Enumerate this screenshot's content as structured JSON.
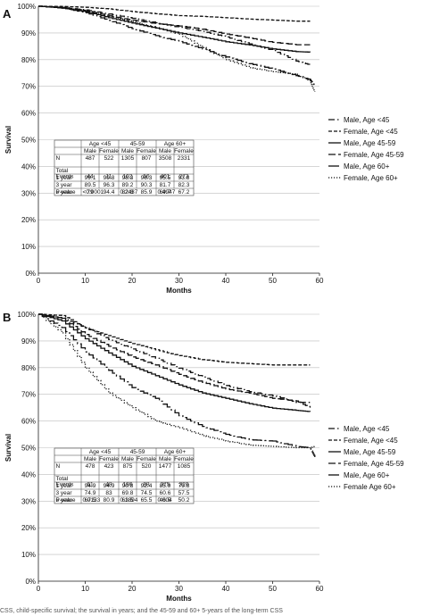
{
  "chart_data": [
    {
      "panel": "A",
      "type": "line",
      "xlabel": "Months",
      "ylabel": "Survival",
      "xlim": [
        0,
        60
      ],
      "ylim": [
        0,
        100
      ],
      "xticks": [
        "0",
        "10",
        "20",
        "30",
        "40",
        "50",
        "60"
      ],
      "yticks": [
        "0%",
        "10%",
        "20%",
        "30%",
        "40%",
        "50%",
        "60%",
        "70%",
        "80%",
        "90%",
        "100%"
      ],
      "grid": true,
      "legend_position": "right",
      "series": [
        {
          "name": "Male, Age <45",
          "dash": "7,3,1.5,3",
          "x": [
            0,
            5,
            10,
            15,
            20,
            25,
            30,
            35,
            40,
            45,
            50,
            55,
            58
          ],
          "y": [
            100,
            99.5,
            98.6,
            97.1,
            95.5,
            93.8,
            92.1,
            90.6,
            88.5,
            85.9,
            83.4,
            79.5,
            78
          ]
        },
        {
          "name": "Female, Age <45",
          "dash": "4,2",
          "x": [
            0,
            5,
            10,
            15,
            20,
            25,
            30,
            35,
            40,
            45,
            50,
            55,
            58
          ],
          "y": [
            100,
            99.9,
            99.6,
            99.0,
            98.0,
            97.2,
            96.5,
            96.2,
            95.7,
            95.2,
            94.8,
            94.4,
            94.4
          ]
        },
        {
          "name": "Male, Age 45-59",
          "dash": "",
          "x": [
            0,
            5,
            10,
            15,
            20,
            25,
            30,
            35,
            40,
            45,
            50,
            55,
            58
          ],
          "y": [
            100,
            99.3,
            98.0,
            95.7,
            93.7,
            91.8,
            90.0,
            88.4,
            86.7,
            85.5,
            84.0,
            83.0,
            82.8
          ]
        },
        {
          "name": "Female, Age 45-59",
          "dash": "8,3",
          "x": [
            0,
            5,
            10,
            15,
            20,
            25,
            30,
            35,
            40,
            45,
            50,
            55,
            58
          ],
          "y": [
            100,
            99.5,
            98.3,
            96.4,
            94.8,
            93.5,
            92.6,
            91.4,
            89.6,
            88.1,
            86.5,
            85.6,
            85.6
          ]
        },
        {
          "name": "Male, Age 60+",
          "dash": "12,3,2,3",
          "x": [
            0,
            5,
            10,
            15,
            20,
            25,
            30,
            35,
            40,
            45,
            50,
            55,
            58,
            59
          ],
          "y": [
            100,
            99.3,
            97.6,
            94.7,
            91.6,
            89.0,
            86.8,
            84.0,
            81.0,
            78.5,
            76.5,
            74.0,
            72.5,
            70
          ]
        },
        {
          "name": "Female, Age 60+",
          "dash": "1.2,1.8",
          "x": [
            0,
            5,
            10,
            15,
            20,
            25,
            30,
            35,
            40,
            45,
            50,
            55,
            58,
            59
          ],
          "y": [
            100,
            99.6,
            98.3,
            96.3,
            94.2,
            92.0,
            89.5,
            84.5,
            80.0,
            77.0,
            75.5,
            74.5,
            72.0,
            68
          ]
        }
      ],
      "table": {
        "groups": [
          "Age <45",
          "45-59",
          "Age 60+"
        ],
        "header": [
          "",
          "Male",
          "Female",
          "Male",
          "Female",
          "Male",
          "Female"
        ],
        "rows": [
          [
            "N",
            "487",
            "522",
            "1305",
            "807",
            "3508",
            "2331"
          ],
          [
            "Total Events",
            "44",
            "11",
            "102",
            "56",
            "401",
            "273"
          ],
          [
            "1 year",
            "99.1",
            "99.8",
            "98.3",
            "96.3",
            "95.5",
            "93.8"
          ],
          [
            "3 year",
            "89.5",
            "96.3",
            "89.2",
            "90.3",
            "81.7",
            "82.3"
          ],
          [
            "5 year",
            "79",
            "94.4",
            "82.8",
            "85.9",
            "69.7",
            "67.2"
          ]
        ],
        "pvalues": [
          "<0.0001",
          "0.2437",
          "0.4947"
        ],
        "pvalue_label": "P-value"
      }
    },
    {
      "panel": "B",
      "type": "line",
      "xlabel": "Months",
      "ylabel": "Survival",
      "xlim": [
        0,
        60
      ],
      "ylim": [
        0,
        100
      ],
      "xticks": [
        "0",
        "10",
        "20",
        "30",
        "40",
        "50",
        "60"
      ],
      "yticks": [
        "0%",
        "10%",
        "20%",
        "30%",
        "40%",
        "50%",
        "60%",
        "70%",
        "80%",
        "90%",
        "100%"
      ],
      "grid": true,
      "legend_position": "right",
      "series": [
        {
          "name": "Male, Age <45",
          "dash": "7,3,1.5,3",
          "x": [
            0,
            5,
            10,
            15,
            20,
            25,
            30,
            35,
            40,
            45,
            50,
            55,
            58
          ],
          "y": [
            100,
            98.5,
            94.9,
            90.5,
            87.0,
            83.5,
            79.8,
            76.5,
            73.3,
            71.0,
            69.5,
            67.0,
            67.0
          ]
        },
        {
          "name": "Female, Age <45",
          "dash": "4,2",
          "x": [
            0,
            5,
            10,
            15,
            20,
            25,
            30,
            35,
            40,
            45,
            50,
            55,
            58
          ],
          "y": [
            100,
            99.5,
            94.9,
            92.0,
            89.0,
            86.7,
            84.5,
            83.0,
            82.0,
            81.5,
            81.0,
            81.0,
            81.0
          ]
        },
        {
          "name": "Male, Age 45-59",
          "dash": "",
          "x": [
            0,
            5,
            10,
            15,
            20,
            25,
            30,
            35,
            40,
            45,
            50,
            55,
            58
          ],
          "y": [
            100,
            97.5,
            90.8,
            85.5,
            80.5,
            77.0,
            73.5,
            70.5,
            68.5,
            66.5,
            64.8,
            64.0,
            63.5
          ]
        },
        {
          "name": "Female, Age 45-59",
          "dash": "8,3",
          "x": [
            0,
            5,
            10,
            15,
            20,
            25,
            30,
            35,
            40,
            45,
            50,
            55,
            58
          ],
          "y": [
            100,
            98.5,
            92.4,
            88.0,
            84.0,
            81.0,
            77.5,
            74.5,
            72.0,
            70.5,
            68.5,
            67.5,
            65.0
          ]
        },
        {
          "name": "Male, Age 60+",
          "dash": "12,3,2,3",
          "x": [
            0,
            5,
            10,
            15,
            20,
            25,
            30,
            35,
            40,
            45,
            50,
            55,
            58,
            59
          ],
          "y": [
            100,
            95.0,
            85.9,
            79.0,
            72.5,
            68.5,
            62.0,
            58.0,
            55.0,
            53.0,
            52.5,
            50.5,
            50.0,
            46.5
          ]
        },
        {
          "name": "Female Age 60+",
          "dash": "1.2,1.8",
          "x": [
            0,
            5,
            10,
            15,
            20,
            25,
            30,
            35,
            40,
            45,
            50,
            55,
            58,
            59
          ],
          "y": [
            100,
            93.0,
            79.8,
            70.5,
            65.0,
            60.0,
            57.5,
            54.5,
            52.5,
            51.0,
            50.5,
            50.0,
            50.0,
            50.5
          ]
        }
      ],
      "table": {
        "groups": [
          "Age <45",
          "45-59",
          "Age 60+"
        ],
        "header": [
          "",
          "Male",
          "Female",
          "Male",
          "Female",
          "Male",
          "Female"
        ],
        "rows": [
          [
            "N",
            "478",
            "423",
            "875",
            "520",
            "1477",
            "1085"
          ],
          [
            "Total Events",
            "61",
            "48",
            "186",
            "88",
            "375",
            "320"
          ],
          [
            "1 year",
            "94.9",
            "94.9",
            "90.8",
            "92.4",
            "85.9",
            "79.8"
          ],
          [
            "3 year",
            "74.9",
            "83",
            "69.8",
            "74.5",
            "60.6",
            "57.5"
          ],
          [
            "5 year",
            "67.5",
            "80.9",
            "63.5",
            "65.5",
            "46.5",
            "50.2"
          ]
        ],
        "pvalues": [
          "0.0133",
          "0.1894",
          "0.004"
        ],
        "pvalue_label": "P-value"
      }
    }
  ],
  "footnote": "CSS, child-specific survival; the survival in years; and the 45-59 and 60+ 5-years of the long-term CSS"
}
